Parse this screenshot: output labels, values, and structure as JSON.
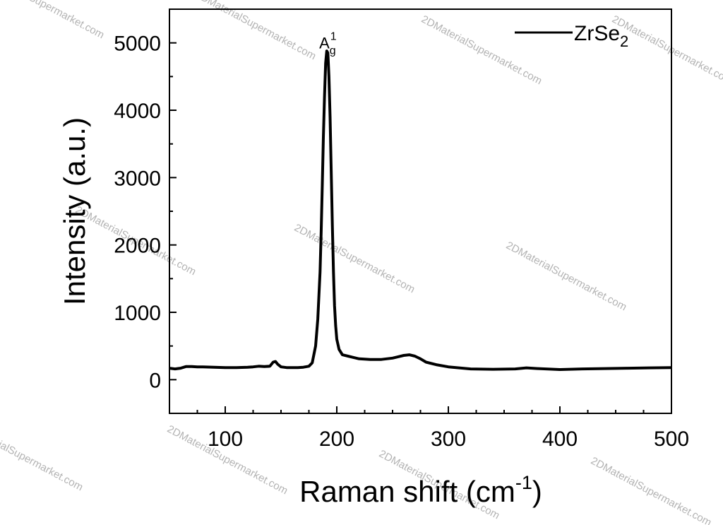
{
  "chart_data": {
    "type": "line",
    "xlabel_main": "Raman shift (cm",
    "xlabel_sup": "-1",
    "xlabel_end": ")",
    "ylabel": "Intensity (a.u.)",
    "xlim": [
      50,
      500
    ],
    "ylim": [
      -500,
      5500
    ],
    "x_ticks": [
      100,
      200,
      300,
      400,
      500
    ],
    "y_ticks": [
      0,
      1000,
      2000,
      3000,
      4000,
      5000
    ],
    "grid": false,
    "legend_position": "top-right",
    "series": [
      {
        "name_main": "ZrSe",
        "name_sub": "2",
        "color": "#000000",
        "x": [
          50,
          55,
          60,
          65,
          70,
          75,
          80,
          90,
          100,
          110,
          120,
          125,
          130,
          135,
          140,
          143,
          145,
          147,
          150,
          155,
          160,
          165,
          170,
          175,
          178,
          181,
          183,
          185,
          186,
          187,
          188,
          189,
          190,
          191,
          192,
          193,
          194,
          195,
          196,
          197,
          198,
          199,
          200,
          202,
          205,
          210,
          215,
          220,
          230,
          240,
          250,
          255,
          260,
          265,
          270,
          275,
          280,
          290,
          300,
          320,
          340,
          360,
          370,
          380,
          400,
          420,
          440,
          460,
          480,
          500
        ],
        "y": [
          170,
          160,
          170,
          195,
          195,
          190,
          190,
          185,
          180,
          180,
          185,
          190,
          200,
          195,
          200,
          260,
          270,
          230,
          190,
          180,
          180,
          180,
          185,
          200,
          250,
          500,
          900,
          1600,
          2200,
          2900,
          3600,
          4200,
          4700,
          4880,
          4850,
          4500,
          3900,
          3100,
          2300,
          1600,
          1100,
          800,
          600,
          450,
          370,
          350,
          330,
          310,
          300,
          300,
          320,
          340,
          360,
          370,
          350,
          310,
          260,
          220,
          190,
          160,
          155,
          160,
          175,
          165,
          150,
          160,
          165,
          170,
          175,
          180
        ]
      }
    ],
    "annotations": [
      {
        "text_main": "A",
        "text_sub": "g",
        "text_sup": "1",
        "x": 192,
        "y": 5000
      }
    ]
  },
  "watermark": {
    "text": "2DMaterialSupermarket.com"
  }
}
